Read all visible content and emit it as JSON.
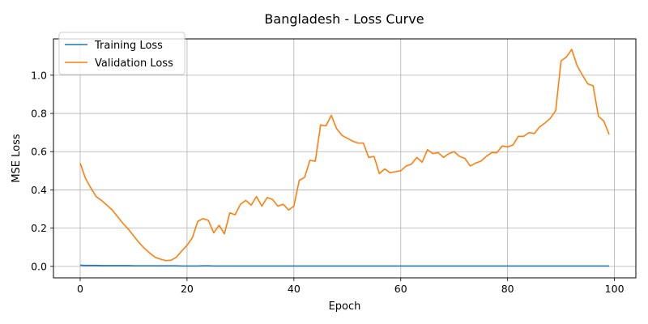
{
  "chart_data": {
    "type": "line",
    "title": "Bangladesh - Loss Curve",
    "xlabel": "Epoch",
    "ylabel": "MSE Loss",
    "xlim": [
      -5,
      104
    ],
    "ylim": [
      -0.06,
      1.19
    ],
    "xticks": [
      0,
      20,
      40,
      60,
      80,
      100
    ],
    "yticks": [
      0.0,
      0.2,
      0.4,
      0.6,
      0.8,
      1.0
    ],
    "xtick_labels": [
      "0",
      "20",
      "40",
      "60",
      "80",
      "100"
    ],
    "ytick_labels": [
      "0.0",
      "0.2",
      "0.4",
      "0.6",
      "0.8",
      "1.0"
    ],
    "grid": true,
    "legend_position": "top-left",
    "series": [
      {
        "name": "Training Loss",
        "color": "#1f77b4",
        "values": [
          0.006,
          0.005,
          0.005,
          0.005,
          0.004,
          0.004,
          0.004,
          0.004,
          0.004,
          0.004,
          0.003,
          0.003,
          0.003,
          0.003,
          0.003,
          0.003,
          0.003,
          0.003,
          0.003,
          0.002,
          0.002,
          0.002,
          0.002,
          0.003,
          0.003,
          0.002,
          0.002,
          0.002,
          0.002,
          0.002,
          0.002,
          0.002,
          0.002,
          0.002,
          0.002,
          0.002,
          0.002,
          0.002,
          0.002,
          0.002,
          0.002,
          0.002,
          0.002,
          0.002,
          0.002,
          0.002,
          0.002,
          0.002,
          0.002,
          0.002,
          0.002,
          0.002,
          0.002,
          0.002,
          0.002,
          0.002,
          0.002,
          0.002,
          0.002,
          0.002,
          0.002,
          0.002,
          0.002,
          0.002,
          0.002,
          0.002,
          0.002,
          0.002,
          0.002,
          0.002,
          0.002,
          0.002,
          0.002,
          0.002,
          0.002,
          0.002,
          0.002,
          0.002,
          0.002,
          0.002,
          0.002,
          0.002,
          0.002,
          0.002,
          0.002,
          0.002,
          0.002,
          0.002,
          0.002,
          0.002,
          0.002,
          0.002,
          0.002,
          0.002,
          0.002,
          0.002,
          0.002,
          0.002,
          0.002,
          0.002
        ]
      },
      {
        "name": "Validation Loss",
        "color": "#ff7f0e",
        "values": [
          0.54,
          0.46,
          0.41,
          0.365,
          0.345,
          0.32,
          0.295,
          0.26,
          0.225,
          0.195,
          0.16,
          0.125,
          0.095,
          0.07,
          0.048,
          0.038,
          0.03,
          0.032,
          0.048,
          0.08,
          0.11,
          0.15,
          0.235,
          0.25,
          0.24,
          0.175,
          0.215,
          0.17,
          0.28,
          0.27,
          0.325,
          0.345,
          0.32,
          0.365,
          0.315,
          0.36,
          0.35,
          0.315,
          0.325,
          0.295,
          0.315,
          0.45,
          0.465,
          0.555,
          0.55,
          0.74,
          0.735,
          0.79,
          0.72,
          0.685,
          0.67,
          0.655,
          0.645,
          0.645,
          0.57,
          0.575,
          0.485,
          0.51,
          0.49,
          0.495,
          0.5,
          0.525,
          0.535,
          0.57,
          0.545,
          0.61,
          0.59,
          0.595,
          0.57,
          0.59,
          0.6,
          0.575,
          0.565,
          0.525,
          0.54,
          0.55,
          0.575,
          0.595,
          0.595,
          0.63,
          0.625,
          0.635,
          0.68,
          0.68,
          0.7,
          0.695,
          0.73,
          0.75,
          0.775,
          0.815,
          1.075,
          1.095,
          1.135,
          1.05,
          1.0,
          0.955,
          0.945,
          0.785,
          0.76,
          0.69
        ]
      }
    ]
  }
}
